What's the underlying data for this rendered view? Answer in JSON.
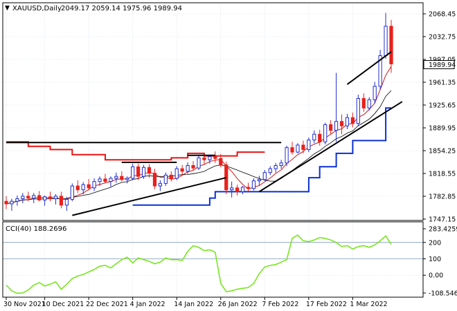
{
  "header": {
    "symbol": "XAUUSD,Daily",
    "ohlc": "2049.17 2059.14 1975.96 1989.94",
    "cci_label": "CCI(40) 188.2696"
  },
  "price_axis": {
    "ticks": [
      "2068.45",
      "2032.75",
      "1997.05",
      "1961.35",
      "1925.65",
      "1889.95",
      "1854.25",
      "1818.55",
      "1782.85",
      "1747.15"
    ],
    "current": "1989.94"
  },
  "cci_axis": {
    "ticks": [
      "283.4259",
      "200",
      "100",
      "0.00",
      "-108.5462"
    ]
  },
  "date_axis": {
    "ticks": [
      "30 Nov 2021",
      "10 Dec 2021",
      "22 Dec 2021",
      "4 Jan 2022",
      "14 Jan 2022",
      "26 Jan 2022",
      "7 Feb 2022",
      "17 Feb 2022",
      "1 Mar 2022"
    ]
  },
  "colors": {
    "bull": "#1f2bd6",
    "bear": "#e8211c",
    "cci": "#77e61e",
    "ma_black": "#000000",
    "ma_red": "#d11616",
    "supertrend_red": "#ee1111",
    "supertrend_blue": "#0b2fd6",
    "levels": "#000000",
    "grid": "#c8d6e4"
  },
  "chart_data": [
    {
      "type": "candlestick",
      "title": "XAUUSD,Daily",
      "ylim": [
        1747.15,
        2075
      ],
      "ohlc": [
        [
          1775,
          1783,
          1763,
          1771
        ],
        [
          1771,
          1779,
          1760,
          1775
        ],
        [
          1775,
          1784,
          1768,
          1779
        ],
        [
          1779,
          1788,
          1772,
          1783
        ],
        [
          1783,
          1790,
          1775,
          1780
        ],
        [
          1780,
          1788,
          1772,
          1784
        ],
        [
          1784,
          1791,
          1775,
          1777
        ],
        [
          1777,
          1784,
          1768,
          1782
        ],
        [
          1782,
          1790,
          1775,
          1779
        ],
        [
          1779,
          1786,
          1770,
          1783
        ],
        [
          1783,
          1790,
          1764,
          1769
        ],
        [
          1769,
          1782,
          1760,
          1778
        ],
        [
          1778,
          1803,
          1775,
          1799
        ],
        [
          1799,
          1808,
          1788,
          1793
        ],
        [
          1793,
          1805,
          1786,
          1801
        ],
        [
          1801,
          1810,
          1792,
          1796
        ],
        [
          1796,
          1811,
          1791,
          1806
        ],
        [
          1806,
          1814,
          1799,
          1810
        ],
        [
          1810,
          1818,
          1803,
          1806
        ],
        [
          1806,
          1814,
          1798,
          1811
        ],
        [
          1811,
          1820,
          1804,
          1814
        ],
        [
          1814,
          1822,
          1806,
          1809
        ],
        [
          1809,
          1814,
          1803,
          1811
        ],
        [
          1811,
          1834,
          1808,
          1829
        ],
        [
          1829,
          1834,
          1808,
          1814
        ],
        [
          1814,
          1832,
          1810,
          1828
        ],
        [
          1828,
          1833,
          1812,
          1819
        ],
        [
          1819,
          1826,
          1794,
          1799
        ],
        [
          1799,
          1808,
          1791,
          1803
        ],
        [
          1803,
          1820,
          1799,
          1816
        ],
        [
          1816,
          1822,
          1806,
          1811
        ],
        [
          1811,
          1830,
          1808,
          1826
        ],
        [
          1826,
          1832,
          1816,
          1822
        ],
        [
          1822,
          1836,
          1818,
          1831
        ],
        [
          1831,
          1838,
          1823,
          1827
        ],
        [
          1827,
          1848,
          1824,
          1843
        ],
        [
          1843,
          1849,
          1833,
          1840
        ],
        [
          1840,
          1848,
          1834,
          1845
        ],
        [
          1845,
          1853,
          1835,
          1842
        ],
        [
          1842,
          1849,
          1828,
          1832
        ],
        [
          1832,
          1837,
          1786,
          1793
        ],
        [
          1793,
          1806,
          1781,
          1796
        ],
        [
          1796,
          1801,
          1784,
          1790
        ],
        [
          1790,
          1799,
          1786,
          1797
        ],
        [
          1797,
          1804,
          1790,
          1795
        ],
        [
          1795,
          1811,
          1792,
          1807
        ],
        [
          1807,
          1815,
          1800,
          1809
        ],
        [
          1809,
          1824,
          1807,
          1820
        ],
        [
          1820,
          1830,
          1816,
          1826
        ],
        [
          1826,
          1835,
          1820,
          1831
        ],
        [
          1831,
          1840,
          1826,
          1835
        ],
        [
          1835,
          1862,
          1830,
          1859
        ],
        [
          1859,
          1868,
          1848,
          1852
        ],
        [
          1852,
          1866,
          1850,
          1863
        ],
        [
          1863,
          1870,
          1850,
          1856
        ],
        [
          1856,
          1875,
          1852,
          1871
        ],
        [
          1871,
          1886,
          1866,
          1880
        ],
        [
          1880,
          1887,
          1862,
          1868
        ],
        [
          1868,
          1898,
          1864,
          1895
        ],
        [
          1895,
          1902,
          1880,
          1886
        ],
        [
          1886,
          1976,
          1868,
          1900
        ],
        [
          1900,
          1911,
          1880,
          1893
        ],
        [
          1893,
          1912,
          1888,
          1906
        ],
        [
          1906,
          1914,
          1891,
          1897
        ],
        [
          1897,
          1942,
          1893,
          1936
        ],
        [
          1936,
          1944,
          1915,
          1921
        ],
        [
          1921,
          1938,
          1917,
          1934
        ],
        [
          1934,
          1962,
          1928,
          1955
        ],
        [
          1955,
          2012,
          1950,
          2003
        ],
        [
          2003,
          2070,
          1998,
          2049
        ],
        [
          2049,
          2059,
          1976,
          1990
        ]
      ]
    },
    {
      "type": "line",
      "title": "CCI(40) 188.2696",
      "ylim": [
        -108.5462,
        283.4259
      ],
      "series": [
        {
          "values": [
            -60,
            -95,
            -110,
            -108,
            -90,
            -60,
            -45,
            -65,
            -55,
            -40,
            -85,
            -55,
            -20,
            -5,
            5,
            20,
            35,
            55,
            60,
            45,
            70,
            95,
            110,
            75,
            105,
            95,
            85,
            70,
            80,
            105,
            95,
            95,
            90,
            145,
            180,
            170,
            150,
            155,
            140,
            -50,
            -100,
            -95,
            -85,
            -80,
            -75,
            -50,
            10,
            50,
            60,
            65,
            80,
            95,
            225,
            245,
            210,
            205,
            215,
            230,
            225,
            215,
            200,
            175,
            180,
            160,
            175,
            180,
            170,
            185,
            210,
            240,
            188
          ]
        }
      ]
    }
  ]
}
